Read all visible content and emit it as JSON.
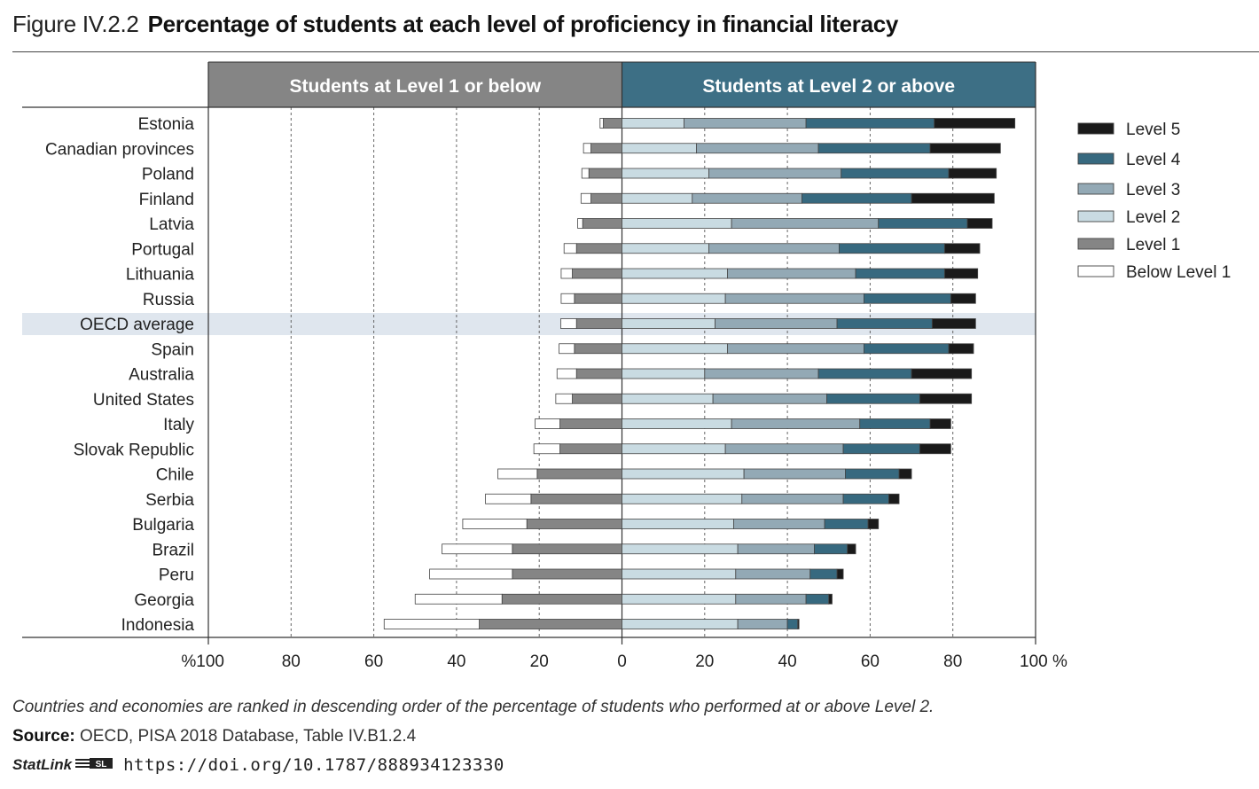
{
  "figure": {
    "number": "Figure IV.2.2",
    "title": "Percentage of students at each level of proficiency in financial literacy"
  },
  "colors": {
    "below_level_1": "#ffffff",
    "level_1": "#858585",
    "level_2": "#c9dbe2",
    "level_3": "#93a9b5",
    "level_4": "#37697f",
    "level_5": "#1a1a1a",
    "header_left": "#858585",
    "header_right": "#3d6f85",
    "highlight_row": "#dfe6ee"
  },
  "chart_data": {
    "type": "bar",
    "orientation": "horizontal-diverging-stacked",
    "title": "Percentage of students at each level of proficiency in financial literacy",
    "left_header": "Students at Level 1 or below",
    "right_header": "Students at Level 2 or above",
    "x_ticks": [
      "%100",
      "80",
      "60",
      "40",
      "20",
      "0",
      "20",
      "40",
      "60",
      "80",
      "100 %"
    ],
    "xlim": [
      -100,
      100
    ],
    "highlighted_category": "OECD average",
    "legend": [
      {
        "key": "level5",
        "label": "Level 5"
      },
      {
        "key": "level4",
        "label": "Level 4"
      },
      {
        "key": "level3",
        "label": "Level 3"
      },
      {
        "key": "level2",
        "label": "Level 2"
      },
      {
        "key": "level1",
        "label": "Level 1"
      },
      {
        "key": "below1",
        "label": "Below Level 1"
      }
    ],
    "rows": [
      {
        "name": "Estonia",
        "below1": 0.8,
        "level1": 4.5,
        "level2": 15,
        "level3": 29.5,
        "level4": 31,
        "level5": 19.5
      },
      {
        "name": "Canadian provinces",
        "below1": 1.8,
        "level1": 7.5,
        "level2": 18,
        "level3": 29.5,
        "level4": 27,
        "level5": 17
      },
      {
        "name": "Poland",
        "below1": 1.7,
        "level1": 8,
        "level2": 21,
        "level3": 32,
        "level4": 26,
        "level5": 11.5
      },
      {
        "name": "Finland",
        "below1": 2.4,
        "level1": 7.5,
        "level2": 17,
        "level3": 26.5,
        "level4": 26.5,
        "level5": 20
      },
      {
        "name": "Latvia",
        "below1": 1.2,
        "level1": 9.5,
        "level2": 26.5,
        "level3": 35.5,
        "level4": 21.5,
        "level5": 6
      },
      {
        "name": "Portugal",
        "below1": 3,
        "level1": 11,
        "level2": 21,
        "level3": 31.5,
        "level4": 25.5,
        "level5": 8.5
      },
      {
        "name": "Lithuania",
        "below1": 2.7,
        "level1": 12,
        "level2": 25.5,
        "level3": 31,
        "level4": 21.5,
        "level5": 8
      },
      {
        "name": "Russia",
        "below1": 3.2,
        "level1": 11.5,
        "level2": 25,
        "level3": 33.5,
        "level4": 21,
        "level5": 6
      },
      {
        "name": "OECD average",
        "below1": 3.8,
        "level1": 11,
        "level2": 22.5,
        "level3": 29.5,
        "level4": 23,
        "level5": 10.5
      },
      {
        "name": "Spain",
        "below1": 3.7,
        "level1": 11.5,
        "level2": 25.5,
        "level3": 33,
        "level4": 20.5,
        "level5": 6
      },
      {
        "name": "Australia",
        "below1": 4.7,
        "level1": 11,
        "level2": 20,
        "level3": 27.5,
        "level4": 22.5,
        "level5": 14.5
      },
      {
        "name": "United States",
        "below1": 4,
        "level1": 12,
        "level2": 22,
        "level3": 27.5,
        "level4": 22.5,
        "level5": 12.5
      },
      {
        "name": "Italy",
        "below1": 6,
        "level1": 15,
        "level2": 26.5,
        "level3": 31,
        "level4": 17,
        "level5": 5
      },
      {
        "name": "Slovak Republic",
        "below1": 6.3,
        "level1": 15,
        "level2": 25,
        "level3": 28.5,
        "level4": 18.5,
        "level5": 7.5
      },
      {
        "name": "Chile",
        "below1": 9.5,
        "level1": 20.5,
        "level2": 29.5,
        "level3": 24.5,
        "level4": 13,
        "level5": 3
      },
      {
        "name": "Serbia",
        "below1": 11,
        "level1": 22,
        "level2": 29,
        "level3": 24.5,
        "level4": 11,
        "level5": 2.5
      },
      {
        "name": "Bulgaria",
        "below1": 15.5,
        "level1": 23,
        "level2": 27,
        "level3": 22,
        "level4": 10.5,
        "level5": 2.5
      },
      {
        "name": "Brazil",
        "below1": 17,
        "level1": 26.5,
        "level2": 28,
        "level3": 18.5,
        "level4": 8,
        "level5": 2
      },
      {
        "name": "Peru",
        "below1": 20,
        "level1": 26.5,
        "level2": 27.5,
        "level3": 18,
        "level4": 6.5,
        "level5": 1.5
      },
      {
        "name": "Georgia",
        "below1": 21,
        "level1": 29,
        "level2": 27.5,
        "level3": 17,
        "level4": 5.5,
        "level5": 0.8
      },
      {
        "name": "Indonesia",
        "below1": 23,
        "level1": 34.5,
        "level2": 28,
        "level3": 12,
        "level4": 2.5,
        "level5": 0.3
      }
    ]
  },
  "footer": {
    "note": "Countries and economies are ranked in descending order of the percentage of students who performed at or above Level 2.",
    "source_label": "Source:",
    "source_text": " OECD, PISA 2018 Database, Table IV.B1.2.4",
    "statlink_word": "StatLink",
    "statlink_logo_text": "SL",
    "statlink_url": "https://doi.org/10.1787/888934123330"
  }
}
